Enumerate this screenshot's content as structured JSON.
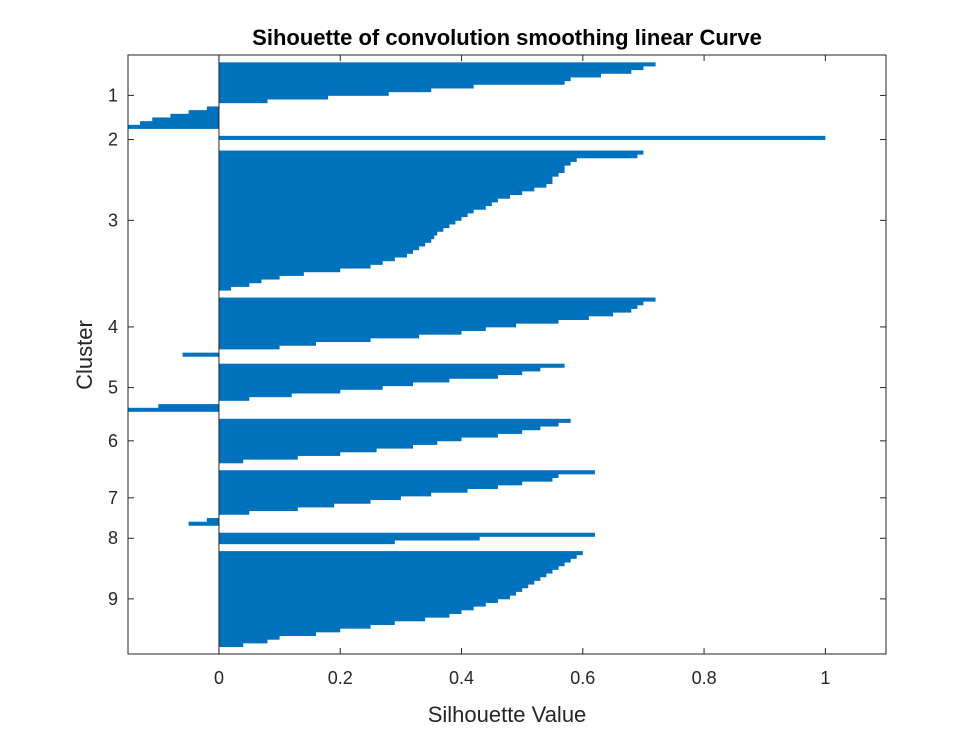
{
  "chart_data": {
    "type": "bar",
    "orientation": "horizontal",
    "title": "Sihouette of convolution smoothing linear Curve",
    "xlabel": "Silhouette Value",
    "ylabel": "Cluster",
    "xlim": [
      -0.15,
      1.1
    ],
    "xticks": [
      0,
      0.2,
      0.4,
      0.6,
      0.8,
      1
    ],
    "xtick_labels": [
      "0",
      "0.2",
      "0.4",
      "0.6",
      "0.8",
      "1"
    ],
    "ytick_labels": [
      "1",
      "2",
      "3",
      "4",
      "5",
      "6",
      "7",
      "8",
      "9"
    ],
    "grid": false,
    "bar_color": "#0072BD",
    "clusters": [
      {
        "label": "1",
        "values": [
          0.72,
          0.7,
          0.68,
          0.63,
          0.58,
          0.57,
          0.42,
          0.35,
          0.28,
          0.18,
          0.08,
          0.0,
          -0.02,
          -0.05,
          -0.08,
          -0.11,
          -0.13,
          -0.15
        ]
      },
      {
        "label": "2",
        "values": [
          1.0,
          0.0
        ]
      },
      {
        "label": "3",
        "values": [
          0.7,
          0.69,
          0.59,
          0.58,
          0.57,
          0.57,
          0.56,
          0.55,
          0.55,
          0.54,
          0.52,
          0.5,
          0.48,
          0.46,
          0.45,
          0.44,
          0.42,
          0.41,
          0.4,
          0.39,
          0.38,
          0.37,
          0.36,
          0.355,
          0.35,
          0.34,
          0.33,
          0.32,
          0.31,
          0.29,
          0.27,
          0.25,
          0.2,
          0.14,
          0.1,
          0.07,
          0.05,
          0.02
        ]
      },
      {
        "label": "4",
        "values": [
          0.72,
          0.7,
          0.69,
          0.68,
          0.65,
          0.61,
          0.56,
          0.49,
          0.44,
          0.4,
          0.33,
          0.25,
          0.16,
          0.1,
          0.0,
          -0.06
        ]
      },
      {
        "label": "5",
        "values": [
          0.57,
          0.53,
          0.5,
          0.46,
          0.38,
          0.32,
          0.27,
          0.2,
          0.12,
          0.05,
          0.0,
          -0.1,
          -0.15
        ]
      },
      {
        "label": "6",
        "values": [
          0.58,
          0.56,
          0.53,
          0.5,
          0.46,
          0.4,
          0.36,
          0.32,
          0.26,
          0.2,
          0.13,
          0.04
        ]
      },
      {
        "label": "7",
        "values": [
          0.62,
          0.56,
          0.55,
          0.5,
          0.46,
          0.41,
          0.35,
          0.3,
          0.25,
          0.19,
          0.13,
          0.05,
          0.0,
          -0.02,
          -0.05
        ]
      },
      {
        "label": "8",
        "values": [
          0.62,
          0.43,
          0.29
        ]
      },
      {
        "label": "9",
        "values": [
          0.6,
          0.59,
          0.58,
          0.57,
          0.56,
          0.55,
          0.54,
          0.53,
          0.52,
          0.51,
          0.5,
          0.49,
          0.48,
          0.46,
          0.44,
          0.42,
          0.4,
          0.38,
          0.34,
          0.29,
          0.25,
          0.2,
          0.16,
          0.1,
          0.08,
          0.04
        ]
      }
    ]
  }
}
